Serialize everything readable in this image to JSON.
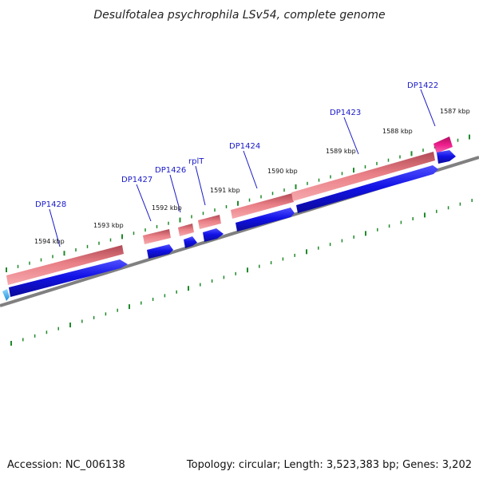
{
  "title": "Desulfotalea psychrophila LSv54, complete genome",
  "footer": {
    "accession": "Accession: NC_006138",
    "info": "Topology: circular; Length: 3,523,383 bp; Genes: 3,202"
  },
  "colors": {
    "backbone": "#808080",
    "tick": "#1f8a2a",
    "rna_gene": "#e7787e",
    "rna_gene_highlight": "#ee1e8c",
    "cds": "#1212e6",
    "cds_small": "#2aaaf0",
    "label": "#1818c8"
  },
  "kbp_labels": [
    "1587 kbp",
    "1588 kbp",
    "1589 kbp",
    "1590 kbp",
    "1591 kbp",
    "1592 kbp",
    "1593 kbp",
    "1594 kbp"
  ],
  "gene_labels": [
    "DP1422",
    "DP1423",
    "DP1424",
    "rplT",
    "DP1426",
    "DP1427",
    "DP1428"
  ]
}
